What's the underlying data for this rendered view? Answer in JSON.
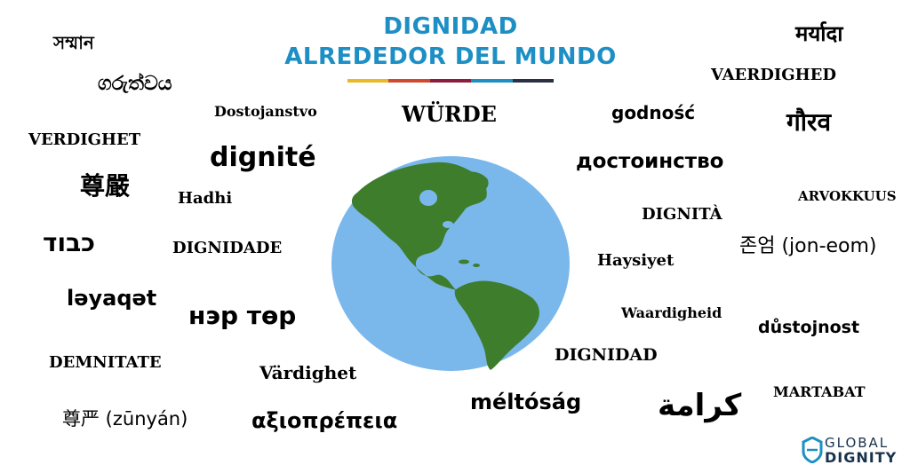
{
  "title": {
    "line1": "DIGNIDAD",
    "line2": "ALREDEDOR DEL MUNDO",
    "color": "#1d8fc4"
  },
  "color_bar": [
    "#e9b824",
    "#d1492c",
    "#8b1e3f",
    "#1d8fc4",
    "#2a2f44"
  ],
  "words": {
    "bengali": "সম্মান",
    "sinhala": "ගරුත්වය",
    "croatian": "Dostojanstvo",
    "swedish_caps": "VERDIGHET",
    "french": "dignité",
    "chinese_trad": "尊嚴",
    "swahili": "Hadhi",
    "hebrew": "כבוד",
    "portuguese": "DIGNIDADE",
    "azerbaijani": "ləyaqət",
    "mongolian": "нэр төр",
    "romanian": "DEMNITATE",
    "swedish": "Värdighet",
    "chinese_simp": "尊严 (zūnyán)",
    "greek": "αξιοπρέπεια",
    "german": "WÜRDE",
    "hungarian": "méltóság",
    "polish": "godność",
    "russian": "достоинство",
    "italian": "DIGNITÀ",
    "turkish": "Haysiyet",
    "afrikaans": "Waardigheid",
    "spanish": "DIGNIDAD",
    "arabic": "كرامة",
    "hindi_maryada": "मर्यादा",
    "danish": "VAERDIGHED",
    "hindi_gaurav": "गौरव",
    "finnish": "ARVOKKUUS",
    "korean": "존엄 (jon-eom)",
    "czech": "důstojnost",
    "malay": "MARTABAT"
  },
  "logo": {
    "line1": "GLOBAL",
    "line2": "DIGNITY"
  },
  "globe": {
    "ocean_color": "#7ab8ec",
    "land_color": "#3d7d2c"
  }
}
